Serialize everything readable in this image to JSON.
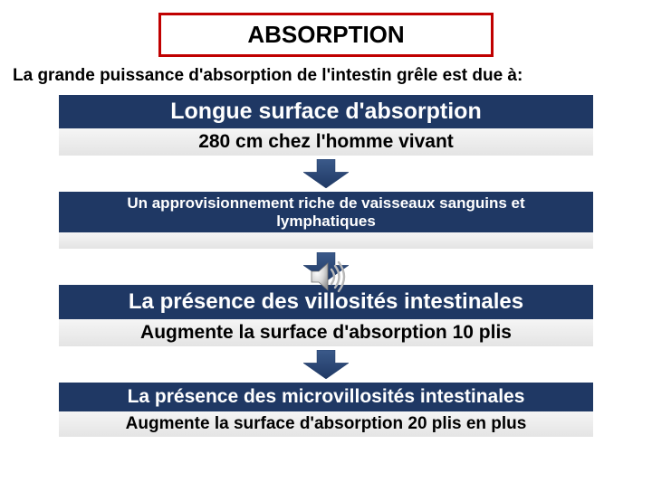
{
  "colors": {
    "title_border": "#c00000",
    "title_text": "#000000",
    "blue_bar_bg": "#1f3864",
    "blue_bar_text": "#ffffff",
    "grey_bar_text": "#000000",
    "arrow_fill": "#1f3864",
    "arrow_grad_light": "#3b5a8a",
    "background": "#ffffff"
  },
  "title": "ABSORPTION",
  "subtitle": "La grande puissance d'absorption de l'intestin grêle est due à:",
  "blocks": [
    {
      "id": "b1",
      "blue": "Longue surface d'absorption",
      "grey": "280 cm chez l'homme vivant",
      "blue_fontsize": 25,
      "grey_fontsize": 21,
      "blue_pad_v": 4,
      "grey_pad_v": 3
    },
    {
      "id": "b2",
      "blue": "Un approvisionnement riche de vaisseaux sanguins et lymphatiques",
      "grey": "",
      "blue_fontsize": 17,
      "grey_fontsize": 12,
      "blue_pad_v": 3,
      "grey_pad_v": 3
    },
    {
      "id": "b3",
      "blue": "La présence des villosités intestinales",
      "grey": "Augmente la surface d'absorption 10 plis",
      "blue_fontsize": 24,
      "grey_fontsize": 21,
      "blue_pad_v": 5,
      "grey_pad_v": 3
    },
    {
      "id": "b4",
      "blue": "La présence des microvillosités intestinales",
      "grey": "Augmente la surface d'absorption 20 plis en plus",
      "blue_fontsize": 21,
      "grey_fontsize": 19,
      "blue_pad_v": 4,
      "grey_pad_v": 3
    }
  ],
  "arrows": {
    "count": 3,
    "width": 50,
    "height": 32,
    "fill": "#1f3864",
    "grad_light": "#3b5a8a"
  },
  "audio_icon": {
    "visible": true,
    "size": 52
  }
}
